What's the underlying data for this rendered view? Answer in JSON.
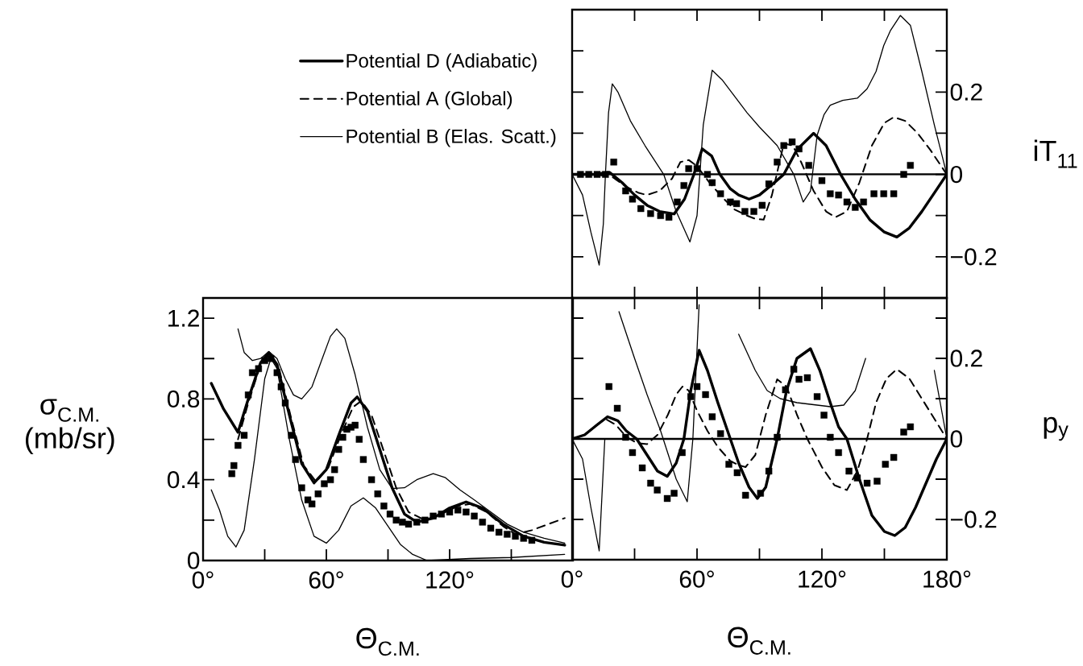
{
  "chart_data": [
    {
      "type": "line",
      "ylabel": "iT$_{11}$",
      "xlim": [
        0,
        180
      ],
      "ylim": [
        -0.3,
        0.4
      ],
      "xticks": [
        30,
        60,
        90,
        120,
        150
      ],
      "yticks": [
        {
          "value": -0.2,
          "label": "−0.2"
        },
        {
          "value": -0.1,
          "label": null
        },
        0,
        {
          "value": 0.1,
          "label": null
        },
        0.2,
        {
          "value": 0.3,
          "label": null
        }
      ],
      "tick_labels": "y",
      "legend": "left",
      "ref_lines": [
        {
          "axis": "y",
          "value": 0
        }
      ],
      "series": [
        {
          "type": "line",
          "name": "Potential  D  (Adiabatic)",
          "color": "#000000",
          "line_style": "solid",
          "x": [
            0,
            10,
            18,
            24,
            30,
            36,
            42,
            49,
            54,
            58.5,
            62.5,
            67,
            71,
            76,
            80,
            85,
            90,
            96,
            101.7,
            108,
            116,
            122,
            129,
            136,
            143,
            150,
            156,
            162,
            168,
            174,
            180
          ],
          "values": [
            0,
            0,
            0.005,
            -0.02,
            -0.05,
            -0.075,
            -0.09,
            -0.096,
            -0.06,
            0,
            0.062,
            0.045,
            0,
            -0.035,
            -0.05,
            -0.06,
            -0.05,
            -0.025,
            0,
            0.06,
            0.1,
            0.07,
            0,
            -0.06,
            -0.11,
            -0.14,
            -0.152,
            -0.13,
            -0.09,
            -0.045,
            0
          ]
        },
        {
          "type": "line",
          "name": "Potential  A  (Global)",
          "color": "#000000",
          "line_style": "dashed",
          "x": [
            0,
            10,
            19,
            26,
            32,
            36,
            42,
            48,
            52,
            56,
            60,
            66,
            72,
            78,
            84,
            88,
            92,
            96,
            101.7,
            106,
            110,
            116,
            122,
            126.5,
            132,
            138,
            144,
            150,
            154.5,
            160,
            166,
            172,
            180
          ],
          "values": [
            0,
            0,
            -0.005,
            -0.03,
            -0.045,
            -0.05,
            -0.04,
            -0.01,
            0.03,
            0.035,
            0.02,
            -0.02,
            -0.055,
            -0.085,
            -0.1,
            -0.108,
            -0.11,
            -0.05,
            0.075,
            0.07,
            0.03,
            -0.04,
            -0.09,
            -0.104,
            -0.09,
            -0.02,
            0.07,
            0.125,
            0.139,
            0.13,
            0.1,
            0.06,
            0
          ]
        },
        {
          "type": "line",
          "name": "Potential  B  (Elas. Scatt.)",
          "color": "#000000",
          "line_style": "solid",
          "x": [
            0,
            5,
            9,
            13,
            15,
            16,
            17.5,
            19.3,
            22,
            28,
            35,
            44,
            50,
            56.6,
            60,
            63,
            67.3,
            72,
            78,
            84,
            90,
            98.5,
            106.5,
            111,
            114.5,
            117.7,
            121,
            124,
            130,
            137,
            141.7,
            146,
            149.7,
            153,
            157.7,
            162.5,
            168,
            174,
            180
          ],
          "values": [
            0,
            -0.05,
            -0.14,
            -0.22,
            -0.12,
            0,
            0.15,
            0.22,
            0.2,
            0.13,
            0.07,
            0,
            -0.09,
            -0.164,
            -0.1,
            0.12,
            0.253,
            0.23,
            0.19,
            0.15,
            0.115,
            0.07,
            0,
            -0.067,
            -0.04,
            0.095,
            0.145,
            0.168,
            0.18,
            0.185,
            0.208,
            0.25,
            0.313,
            0.35,
            0.386,
            0.362,
            0.25,
            0.12,
            0
          ]
        },
        {
          "type": "scatter",
          "color": "#000000",
          "marker": "square",
          "x": [
            4,
            8,
            12,
            16,
            20,
            25.7,
            29,
            33,
            37.7,
            42.5,
            46.5,
            50.5,
            53.7,
            56,
            60,
            65,
            67.3,
            71.3,
            76,
            79,
            83,
            87.3,
            91.3,
            94.5,
            98.5,
            101.7,
            105.7,
            109,
            113.7,
            120,
            124,
            128,
            132,
            136,
            140,
            145,
            149.7,
            154.5,
            159.3,
            162.5
          ],
          "values": [
            0,
            0,
            0,
            0,
            0.03,
            -0.04,
            -0.06,
            -0.083,
            -0.095,
            -0.1,
            -0.104,
            -0.067,
            -0.027,
            0.014,
            0.014,
            0,
            -0.02,
            -0.047,
            -0.067,
            -0.071,
            -0.09,
            -0.09,
            -0.075,
            -0.023,
            0.03,
            0.07,
            0.079,
            0.062,
            0.022,
            -0.015,
            -0.047,
            -0.05,
            -0.067,
            -0.08,
            -0.067,
            -0.047,
            -0.047,
            -0.047,
            0,
            0.022
          ]
        }
      ]
    },
    {
      "type": "line",
      "xlabel": "Θ$_{C.M.}$",
      "ylabel": "σ$_{C.M.}$ (mb/sr)",
      "xlim": [
        0,
        180
      ],
      "ylim": [
        0,
        1.3
      ],
      "xticks": [
        {
          "value": 0,
          "label": "0°"
        },
        {
          "value": 30,
          "label": null
        },
        {
          "value": 60,
          "label": "60°"
        },
        {
          "value": 90,
          "label": null
        },
        {
          "value": 120,
          "label": "120°"
        },
        {
          "value": 150,
          "label": null
        }
      ],
      "yticks": [
        0,
        {
          "value": 0.2,
          "label": null
        },
        0.4,
        {
          "value": 0.6,
          "label": null
        },
        0.8,
        {
          "value": 1.0,
          "label": null
        },
        1.2
      ],
      "series": [
        {
          "type": "line",
          "color": "#000000",
          "line_style": "solid",
          "x": [
            4,
            10,
            17,
            22,
            28,
            32,
            36,
            42,
            48,
            54,
            60,
            66,
            72,
            75,
            80,
            86,
            92,
            98,
            104,
            112,
            120,
            128,
            136,
            146,
            156,
            166,
            176
          ],
          "values": [
            0.877,
            0.75,
            0.635,
            0.8,
            0.98,
            1.03,
            0.97,
            0.72,
            0.48,
            0.384,
            0.45,
            0.62,
            0.78,
            0.81,
            0.74,
            0.55,
            0.36,
            0.23,
            0.19,
            0.21,
            0.26,
            0.29,
            0.26,
            0.18,
            0.12,
            0.09,
            0.076
          ]
        },
        {
          "type": "line",
          "color": "#000000",
          "line_style": "dashed",
          "x": [
            17,
            22,
            28,
            32,
            37,
            43,
            49,
            55,
            61,
            67,
            73,
            77,
            82,
            88,
            94,
            100,
            108,
            116,
            124,
            130,
            138,
            146,
            152,
            160,
            168,
            176
          ],
          "values": [
            0.6,
            0.78,
            0.97,
            1.02,
            0.95,
            0.7,
            0.47,
            0.39,
            0.46,
            0.62,
            0.76,
            0.79,
            0.72,
            0.54,
            0.36,
            0.24,
            0.2,
            0.23,
            0.27,
            0.28,
            0.24,
            0.17,
            0.13,
            0.15,
            0.18,
            0.21
          ]
        },
        {
          "type": "line",
          "color": "#000000",
          "line_style": "solid",
          "x": [
            17,
            20,
            24,
            28,
            32,
            36,
            40,
            44,
            48,
            53,
            58,
            62,
            65,
            69,
            74,
            80,
            86,
            92,
            98,
            104,
            112,
            118,
            125,
            132,
            140,
            148,
            156,
            166,
            176
          ],
          "values": [
            1.147,
            1.03,
            0.99,
            1.0,
            1.035,
            1.0,
            0.9,
            0.82,
            0.8,
            0.86,
            1.0,
            1.11,
            1.147,
            1.1,
            0.92,
            0.66,
            0.45,
            0.356,
            0.36,
            0.4,
            0.43,
            0.41,
            0.35,
            0.3,
            0.24,
            0.18,
            0.14,
            0.11,
            0.086
          ]
        },
        {
          "type": "line",
          "color": "#000000",
          "line_style": "solid",
          "x": [
            4,
            8,
            12,
            16,
            20,
            25,
            30,
            33,
            36,
            42,
            48,
            54,
            60,
            66,
            72,
            78,
            84,
            90,
            96,
            102,
            109,
            130,
            150,
            176
          ],
          "values": [
            0.35,
            0.25,
            0.12,
            0.067,
            0.15,
            0.5,
            0.9,
            1.0,
            0.95,
            0.6,
            0.3,
            0.12,
            0.086,
            0.15,
            0.27,
            0.31,
            0.26,
            0.17,
            0.08,
            0.03,
            0,
            0.01,
            0.015,
            0.03
          ]
        },
        {
          "type": "scatter",
          "color": "#000000",
          "marker": "square",
          "x": [
            14,
            15,
            17,
            20,
            22,
            24,
            27,
            30,
            33,
            36,
            38,
            40,
            43,
            45,
            48,
            51,
            53,
            56,
            59,
            62,
            64,
            66,
            68,
            70,
            72,
            74,
            76,
            78,
            82,
            85,
            88,
            91,
            94,
            97,
            100,
            104,
            108,
            112,
            116,
            120,
            124,
            128,
            132,
            136,
            140,
            144,
            148,
            152,
            156,
            160
          ],
          "values": [
            0.43,
            0.47,
            0.57,
            0.62,
            0.82,
            0.93,
            0.95,
            0.99,
            1.0,
            0.93,
            0.86,
            0.78,
            0.62,
            0.5,
            0.36,
            0.3,
            0.28,
            0.33,
            0.38,
            0.4,
            0.45,
            0.55,
            0.61,
            0.65,
            0.66,
            0.67,
            0.6,
            0.5,
            0.4,
            0.33,
            0.27,
            0.23,
            0.2,
            0.19,
            0.18,
            0.19,
            0.2,
            0.22,
            0.23,
            0.24,
            0.25,
            0.24,
            0.22,
            0.19,
            0.16,
            0.14,
            0.13,
            0.12,
            0.11,
            0.1
          ]
        }
      ]
    },
    {
      "type": "line",
      "xlabel": "Θ$_{C.M.}$",
      "ylabel": "p$_{y}$",
      "xlim": [
        0,
        180
      ],
      "ylim": [
        -0.3,
        0.35
      ],
      "xticks": [
        {
          "value": 0,
          "label": "0°"
        },
        {
          "value": 30,
          "label": null
        },
        {
          "value": 60,
          "label": "60°"
        },
        {
          "value": 90,
          "label": null
        },
        {
          "value": 120,
          "label": "120°"
        },
        {
          "value": 150,
          "label": null
        },
        {
          "value": 180,
          "label": "180°"
        }
      ],
      "yticks": [
        {
          "value": -0.2,
          "label": "−0.2"
        },
        {
          "value": -0.1,
          "label": null
        },
        0,
        {
          "value": 0.1,
          "label": null
        },
        0.2,
        {
          "value": 0.3,
          "label": null
        }
      ],
      "ref_lines": [
        {
          "axis": "y",
          "value": 0
        }
      ],
      "series": [
        {
          "type": "line",
          "color": "#000000",
          "line_style": "solid",
          "x": [
            0,
            6,
            12,
            17,
            22,
            26,
            31,
            36,
            41,
            45.7,
            50,
            53.7,
            57,
            61,
            65,
            70,
            76,
            80,
            85,
            89,
            93,
            98.5,
            103,
            108,
            114.5,
            119,
            124,
            128,
            132,
            138,
            144,
            150,
            155,
            160,
            165,
            170,
            175,
            180
          ],
          "values": [
            0,
            0.01,
            0.035,
            0.055,
            0.045,
            0.02,
            0,
            -0.04,
            -0.08,
            -0.093,
            -0.06,
            0,
            0.12,
            0.22,
            0.17,
            0.09,
            0,
            -0.06,
            -0.12,
            -0.148,
            -0.12,
            0,
            0.12,
            0.2,
            0.224,
            0.17,
            0.09,
            0.03,
            0,
            -0.1,
            -0.19,
            -0.23,
            -0.24,
            -0.22,
            -0.17,
            -0.11,
            -0.05,
            0
          ]
        },
        {
          "type": "line",
          "color": "#000000",
          "line_style": "dashed",
          "x": [
            0,
            6,
            12,
            16,
            21,
            26,
            31,
            36,
            41,
            46,
            50,
            53,
            56,
            60,
            65,
            70,
            76,
            80,
            83.3,
            88,
            93,
            98.5,
            103,
            108,
            113,
            120,
            126,
            132,
            137,
            141.7,
            146,
            151,
            156,
            162,
            168,
            174,
            180
          ],
          "values": [
            0,
            0.01,
            0.035,
            0.05,
            0.035,
            0.005,
            -0.01,
            -0.013,
            0.01,
            0.06,
            0.11,
            0.13,
            0.12,
            0.07,
            0.02,
            -0.02,
            -0.055,
            -0.065,
            -0.07,
            -0.04,
            0.06,
            0.148,
            0.13,
            0.06,
            0,
            -0.07,
            -0.115,
            -0.127,
            -0.08,
            0,
            0.09,
            0.15,
            0.173,
            0.15,
            0.1,
            0.05,
            0
          ]
        },
        {
          "type": "line",
          "color": "#000000",
          "line_style": "solid",
          "x": [
            0,
            5,
            9,
            13,
            15.7,
            17.7,
            19.5,
            21,
            22.5,
            30,
            36,
            42.5,
            50,
            55.3,
            58,
            61,
            61.7,
            67,
            72.9,
            80,
            88,
            93.7,
            100,
            108,
            116,
            124,
            130.5,
            136,
            141,
            146.5,
            158,
            168.5,
            174,
            180
          ],
          "values": [
            0,
            -0.05,
            -0.17,
            -0.278,
            0,
            null,
            null,
            null,
            0.316,
            0.2,
            0.11,
            0.02,
            -0.1,
            -0.156,
            0,
            0.333,
            null,
            null,
            null,
            0.26,
            0.17,
            0.12,
            0.1,
            0.09,
            0.085,
            0.08,
            0.084,
            0.12,
            0.2,
            null,
            null,
            null,
            0.17,
            0
          ]
        },
        {
          "type": "scatter",
          "color": "#000000",
          "marker": "square",
          "x": [
            17.7,
            21.7,
            25.7,
            29,
            33.7,
            37.7,
            40.9,
            45.7,
            49,
            52.9,
            57,
            60,
            64.1,
            67.3,
            71.3,
            75.3,
            79.3,
            83.3,
            90.5,
            94.5,
            98.5,
            102.5,
            106.5,
            109,
            113,
            117.7,
            121,
            124,
            128,
            133,
            137,
            141.7,
            146.5,
            150.5,
            154.5,
            159.3,
            162.5
          ],
          "values": [
            0.13,
            0.076,
            0.004,
            -0.034,
            -0.072,
            -0.11,
            -0.127,
            -0.148,
            -0.135,
            -0.034,
            0.105,
            0.13,
            0.11,
            0.055,
            0.013,
            -0.063,
            -0.084,
            -0.14,
            -0.135,
            -0.08,
            0.004,
            0.122,
            0.173,
            0.148,
            0.152,
            0.105,
            0.059,
            0.004,
            -0.034,
            -0.08,
            -0.097,
            -0.11,
            -0.105,
            -0.063,
            -0.046,
            0.017,
            0.03
          ]
        }
      ]
    }
  ]
}
